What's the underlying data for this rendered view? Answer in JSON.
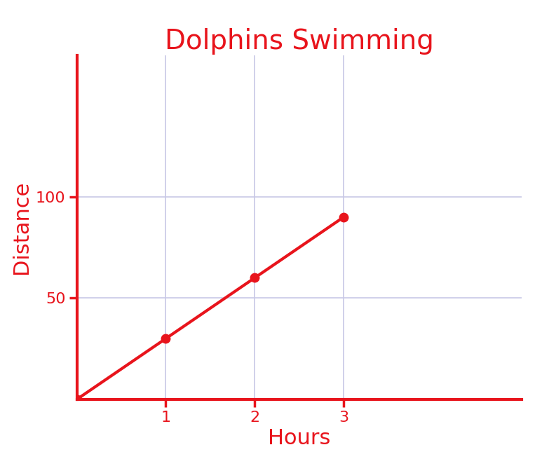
{
  "chart_data": {
    "type": "line",
    "title": "Dolphins Swimming",
    "x_label": "Hours",
    "y_label": "Distance",
    "x": [
      0,
      1,
      2,
      3
    ],
    "values": [
      0,
      30,
      60,
      90
    ],
    "color": "#e8141c",
    "marker": "o",
    "line_style": "solid",
    "xlim": [
      0,
      5
    ],
    "ylim": [
      0,
      170
    ],
    "xticks": [
      1,
      2,
      3
    ],
    "yticks": [
      50,
      100
    ],
    "grid": true
  }
}
